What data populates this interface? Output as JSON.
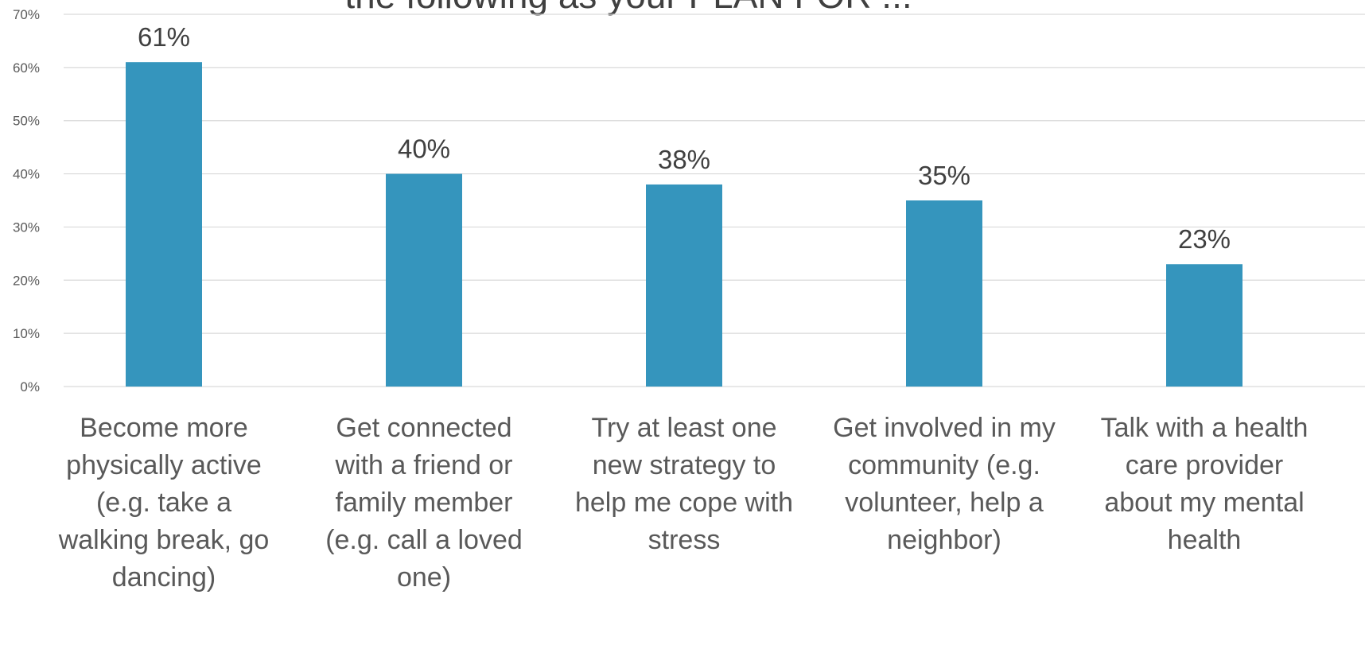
{
  "chart_data": {
    "type": "bar",
    "title": "the following as your PLAN FOR ...",
    "categories": [
      [
        "Become more",
        "physically active",
        "(e.g. take a",
        "walking break, go",
        "dancing)"
      ],
      [
        "Get connected",
        "with a friend or",
        "family member",
        "(e.g. call a loved",
        "one)"
      ],
      [
        "Try at least one",
        "new strategy to",
        "help me cope with",
        "stress"
      ],
      [
        "Get involved in my",
        "community (e.g.",
        "volunteer, help a",
        "neighbor)"
      ],
      [
        "Talk with a health",
        "care provider",
        "about my mental",
        "health"
      ]
    ],
    "values": [
      61,
      40,
      38,
      35,
      23
    ],
    "data_labels": [
      "61%",
      "40%",
      "38%",
      "35%",
      "23%"
    ],
    "ylim": [
      0,
      70
    ],
    "yticks": [
      0,
      10,
      20,
      30,
      40,
      50,
      60,
      70
    ],
    "ytick_labels": [
      "0%",
      "10%",
      "20%",
      "30%",
      "40%",
      "50%",
      "60%",
      "70%"
    ],
    "grid": true,
    "legend": "none",
    "colors": {
      "bar": "#3595BD"
    }
  }
}
